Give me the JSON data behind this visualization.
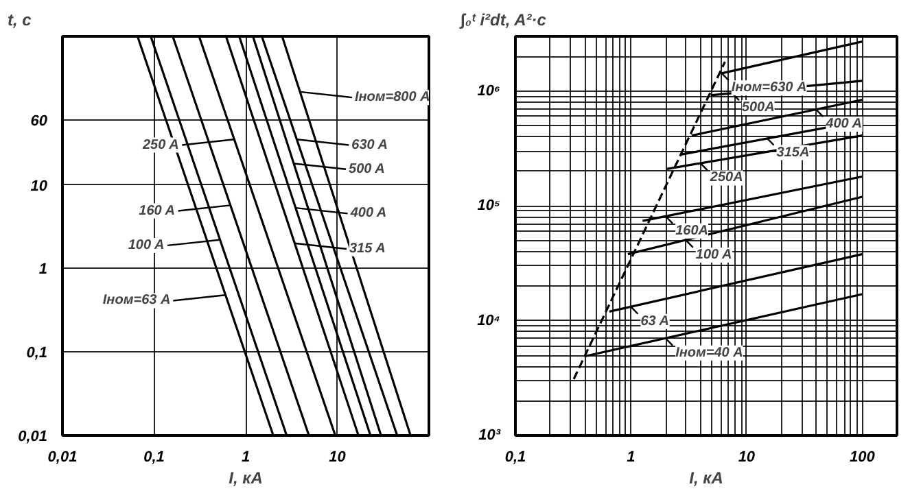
{
  "chart_data": [
    {
      "type": "line",
      "log": "xy",
      "grid": true,
      "xlabel": "I, кА",
      "ylabel": "t, c",
      "xlim": [
        0.01,
        100
      ],
      "ylim": [
        0.01,
        600
      ],
      "xticks": [
        {
          "value": 0.01,
          "label": "0,01"
        },
        {
          "value": 0.1,
          "label": "0,1"
        },
        1,
        10
      ],
      "yticks": [
        {
          "value": 0.01,
          "label": "0,01"
        },
        {
          "value": 0.1,
          "label": "0,1"
        },
        1,
        10,
        60
      ],
      "series": [
        {
          "color": "#000000",
          "x": [
            0.066,
            2.0
          ],
          "values": [
            600,
            0.01
          ]
        },
        {
          "color": "#000000",
          "x": [
            0.092,
            2.8
          ],
          "values": [
            600,
            0.01
          ]
        },
        {
          "color": "#000000",
          "x": [
            0.16,
            4.9
          ],
          "values": [
            600,
            0.01
          ]
        },
        {
          "color": "#000000",
          "x": [
            0.31,
            9.5
          ],
          "values": [
            600,
            0.01
          ]
        },
        {
          "color": "#000000",
          "x": [
            0.61,
            17
          ],
          "values": [
            600,
            0.01
          ]
        },
        {
          "color": "#000000",
          "x": [
            0.85,
            23
          ],
          "values": [
            600,
            0.01
          ]
        },
        {
          "color": "#000000",
          "x": [
            1.2,
            30
          ],
          "values": [
            600,
            0.01
          ]
        },
        {
          "color": "#000000",
          "x": [
            1.5,
            45
          ],
          "values": [
            600,
            0.01
          ]
        },
        {
          "color": "#000000",
          "x": [
            2.5,
            63
          ],
          "values": [
            600,
            0.01
          ]
        }
      ],
      "annotations": [
        {
          "text": "Iном=800 A",
          "x": 3.9,
          "y": 130
        },
        {
          "text": "630 A",
          "x": 3.6,
          "y": 35
        },
        {
          "text": "500 A",
          "x": 3.35,
          "y": 18
        },
        {
          "text": "400 A",
          "x": 3.5,
          "y": 5.3
        },
        {
          "text": "315 A",
          "x": 3.4,
          "y": 2
        },
        {
          "text": "250 A",
          "x": 0.75,
          "y": 35
        },
        {
          "text": "160 A",
          "x": 0.68,
          "y": 5.7
        },
        {
          "text": "100 A",
          "x": 0.52,
          "y": 2.2
        },
        {
          "text": "Iном=63 A",
          "x": 0.6,
          "y": 0.48
        }
      ]
    },
    {
      "type": "line",
      "log": "xy",
      "grid": true,
      "xlabel": "I, кА",
      "ylabel": "∫₀ᵗ i²dt, A²·c",
      "xlim": [
        0.1,
        200
      ],
      "ylim": [
        1000,
        3000000
      ],
      "xticks": [
        {
          "value": 0.1,
          "label": "0,1"
        },
        {
          "value": 0.2,
          "label": null
        },
        {
          "value": 0.3,
          "label": null
        },
        {
          "value": 0.4,
          "label": null
        },
        {
          "value": 0.5,
          "label": null
        },
        {
          "value": 0.6,
          "label": null
        },
        {
          "value": 0.7,
          "label": null
        },
        {
          "value": 0.8,
          "label": null
        },
        {
          "value": 0.9,
          "label": null
        },
        1,
        {
          "value": 2,
          "label": null
        },
        {
          "value": 3,
          "label": null
        },
        {
          "value": 4,
          "label": null
        },
        {
          "value": 5,
          "label": null
        },
        {
          "value": 6,
          "label": null
        },
        {
          "value": 7,
          "label": null
        },
        {
          "value": 8,
          "label": null
        },
        {
          "value": 9,
          "label": null
        },
        10,
        {
          "value": 20,
          "label": null
        },
        {
          "value": 30,
          "label": null
        },
        {
          "value": 40,
          "label": null
        },
        {
          "value": 50,
          "label": null
        },
        {
          "value": 60,
          "label": null
        },
        {
          "value": 70,
          "label": null
        },
        {
          "value": 80,
          "label": null
        },
        {
          "value": 90,
          "label": null
        },
        100
      ],
      "yticks": [
        {
          "value": 1000,
          "label": "10³"
        },
        {
          "value": 2000,
          "label": null
        },
        {
          "value": 3000,
          "label": null
        },
        {
          "value": 4000,
          "label": null
        },
        {
          "value": 5000,
          "label": null
        },
        {
          "value": 6000,
          "label": null
        },
        {
          "value": 7000,
          "label": null
        },
        {
          "value": 8000,
          "label": null
        },
        {
          "value": 9000,
          "label": null
        },
        {
          "value": 10000,
          "label": "10⁴"
        },
        {
          "value": 20000,
          "label": null
        },
        {
          "value": 30000,
          "label": null
        },
        {
          "value": 40000,
          "label": null
        },
        {
          "value": 50000,
          "label": null
        },
        {
          "value": 60000,
          "label": null
        },
        {
          "value": 70000,
          "label": null
        },
        {
          "value": 80000,
          "label": null
        },
        {
          "value": 90000,
          "label": null
        },
        {
          "value": 100000,
          "label": "10⁵"
        },
        {
          "value": 200000,
          "label": null
        },
        {
          "value": 300000,
          "label": null
        },
        {
          "value": 400000,
          "label": null
        },
        {
          "value": 500000,
          "label": null
        },
        {
          "value": 600000,
          "label": null
        },
        {
          "value": 700000,
          "label": null
        },
        {
          "value": 800000,
          "label": null
        },
        {
          "value": 900000,
          "label": null
        },
        {
          "value": 1000000,
          "label": "10⁶"
        },
        {
          "value": 2000000,
          "label": null
        }
      ],
      "series": [
        {
          "color": "#000000",
          "line_style": "dashed",
          "x": [
            0.32,
            6.5
          ],
          "values": [
            3100,
            1800000
          ]
        },
        {
          "color": "#000000",
          "x": [
            0.4,
            100
          ],
          "values": [
            4900,
            17000
          ]
        },
        {
          "color": "#000000",
          "x": [
            0.65,
            100
          ],
          "values": [
            12000,
            38000
          ]
        },
        {
          "color": "#000000",
          "x": [
            0.94,
            100
          ],
          "values": [
            38000,
            120000
          ]
        },
        {
          "color": "#000000",
          "x": [
            1.26,
            100
          ],
          "values": [
            74000,
            180000
          ]
        },
        {
          "color": "#000000",
          "x": [
            2.05,
            100
          ],
          "values": [
            210000,
            410000
          ]
        },
        {
          "color": "#000000",
          "x": [
            2.7,
            100
          ],
          "values": [
            280000,
            550000
          ]
        },
        {
          "color": "#000000",
          "x": [
            3.35,
            100
          ],
          "values": [
            410000,
            840000
          ]
        },
        {
          "color": "#000000",
          "x": [
            4.9,
            100
          ],
          "values": [
            920000,
            1230000
          ]
        },
        {
          "color": "#000000",
          "x": [
            6.1,
            100
          ],
          "values": [
            1430000,
            2700000
          ]
        }
      ],
      "annotations": [
        {
          "text": "Iном=630 A",
          "x": 6.1,
          "y": 1430000
        },
        {
          "text": "500A",
          "x": 7.5,
          "y": 960000
        },
        {
          "text": "400 A",
          "x": 40,
          "y": 690000
        },
        {
          "text": "315A",
          "x": 15,
          "y": 390000
        },
        {
          "text": "250A",
          "x": 4,
          "y": 235000
        },
        {
          "text": "160A",
          "x": 2,
          "y": 81000
        },
        {
          "text": "100 A",
          "x": 3,
          "y": 50000
        },
        {
          "text": "63 A",
          "x": 1,
          "y": 13200
        },
        {
          "text": "Iном=40 A",
          "x": 2,
          "y": 7000
        }
      ]
    }
  ]
}
